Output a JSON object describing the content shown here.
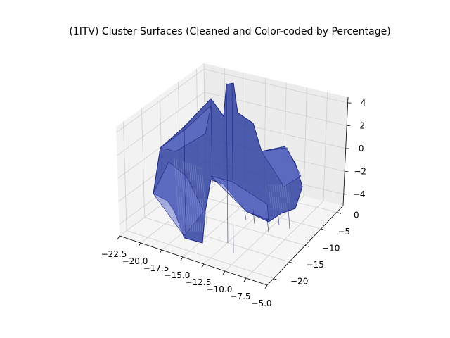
{
  "chart_data": {
    "type": "surface3d",
    "title": "(1ITV) Cluster Surfaces (Cleaned and Color-coded by Percentage)",
    "x_axis": {
      "ticks": [
        -22.5,
        -20.0,
        -17.5,
        -15.0,
        -12.5,
        -10.0,
        -7.5,
        -5.0
      ],
      "tick_labels": [
        "−22.5",
        "−20.0",
        "−17.5",
        "−15.0",
        "−12.5",
        "−10.0",
        "−7.5",
        "−5.0"
      ],
      "range": [
        -22.5,
        -5.0
      ]
    },
    "y_axis": {
      "ticks": [
        -20,
        -15,
        -10,
        -5,
        0
      ],
      "tick_labels": [
        "−20",
        "−15",
        "−10",
        "−5",
        "0"
      ],
      "range": [
        -22,
        2
      ]
    },
    "z_axis": {
      "ticks": [
        -4,
        -2,
        0,
        2,
        4
      ],
      "tick_labels": [
        "−4",
        "−2",
        "0",
        "2",
        "4"
      ],
      "range": [
        -5,
        4.5
      ]
    },
    "grid": true,
    "surface_color": "#2a3a9e",
    "surface_edge_color": "#1c2680",
    "pane_color": "#f2f2f2",
    "grid_color": "#cfcfcf"
  }
}
